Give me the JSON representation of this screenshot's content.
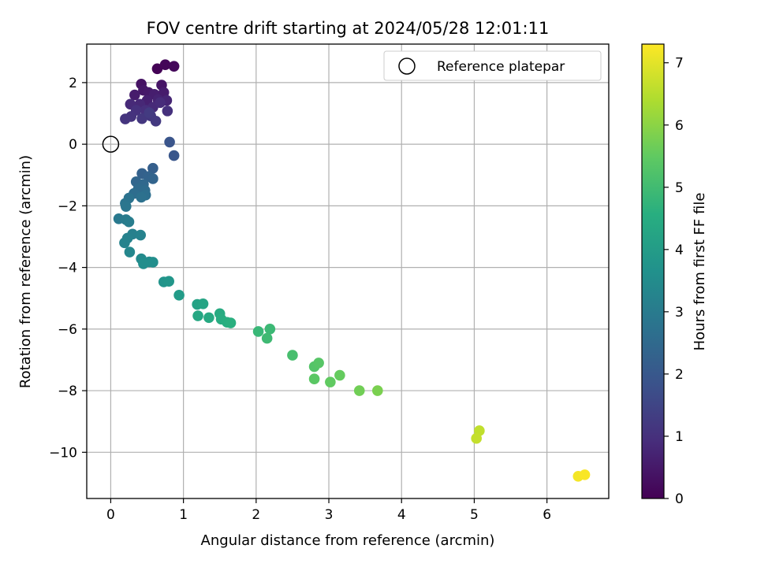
{
  "chart_data": {
    "type": "scatter",
    "title": "FOV centre drift starting at 2024/05/28 12:01:11",
    "xlabel": "Angular distance from reference (arcmin)",
    "ylabel": "Rotation from reference (arcmin)",
    "xlim": [
      -0.33,
      6.85
    ],
    "ylim": [
      -11.5,
      3.25
    ],
    "x_ticks": [
      0,
      1,
      2,
      3,
      4,
      5,
      6
    ],
    "y_ticks": [
      2,
      0,
      -2,
      -4,
      -6,
      -8,
      -10
    ],
    "y_tick_labels": [
      "2",
      "0",
      "−2",
      "−4",
      "−6",
      "−8",
      "−10"
    ],
    "grid": true,
    "legend": {
      "placement": "top-right",
      "entries": [
        "Reference platepar"
      ]
    },
    "reference_point": {
      "name": "Reference platepar",
      "x": 0,
      "y": 0,
      "marker": "open-circle"
    },
    "colorbar": {
      "label": "Hours from first FF file",
      "range": [
        0,
        7.3
      ],
      "ticks": [
        0,
        1,
        2,
        3,
        4,
        5,
        6,
        7
      ],
      "colormap": "viridis"
    },
    "series": [
      {
        "points": [
          {
            "x": 0.64,
            "y": 2.45,
            "c": 0.05
          },
          {
            "x": 0.75,
            "y": 2.58,
            "c": 0.1
          },
          {
            "x": 0.87,
            "y": 2.53,
            "c": 0.15
          },
          {
            "x": 0.42,
            "y": 1.95,
            "c": 0.35
          },
          {
            "x": 0.7,
            "y": 1.92,
            "c": 0.4
          },
          {
            "x": 0.45,
            "y": 1.75,
            "c": 0.45
          },
          {
            "x": 0.52,
            "y": 1.68,
            "c": 0.5
          },
          {
            "x": 0.33,
            "y": 1.6,
            "c": 0.55
          },
          {
            "x": 0.6,
            "y": 1.62,
            "c": 0.6
          },
          {
            "x": 0.73,
            "y": 1.68,
            "c": 0.55
          },
          {
            "x": 0.5,
            "y": 1.42,
            "c": 0.65
          },
          {
            "x": 0.65,
            "y": 1.45,
            "c": 0.7
          },
          {
            "x": 0.77,
            "y": 1.42,
            "c": 0.75
          },
          {
            "x": 0.4,
            "y": 1.3,
            "c": 0.8
          },
          {
            "x": 0.27,
            "y": 1.3,
            "c": 0.85
          },
          {
            "x": 0.58,
            "y": 1.2,
            "c": 0.85
          },
          {
            "x": 0.68,
            "y": 1.35,
            "c": 0.9
          },
          {
            "x": 0.48,
            "y": 1.1,
            "c": 0.95
          },
          {
            "x": 0.35,
            "y": 1.1,
            "c": 1.0
          },
          {
            "x": 0.78,
            "y": 1.08,
            "c": 1.0
          },
          {
            "x": 0.28,
            "y": 0.9,
            "c": 1.05
          },
          {
            "x": 0.2,
            "y": 0.82,
            "c": 1.1
          },
          {
            "x": 0.43,
            "y": 0.83,
            "c": 1.15
          },
          {
            "x": 0.55,
            "y": 0.92,
            "c": 1.15
          },
          {
            "x": 0.62,
            "y": 0.75,
            "c": 1.2
          },
          {
            "x": 0.53,
            "y": 1.02,
            "c": 1.25
          },
          {
            "x": 0.81,
            "y": 0.07,
            "c": 1.9
          },
          {
            "x": 0.87,
            "y": -0.37,
            "c": 1.95
          },
          {
            "x": 0.58,
            "y": -0.78,
            "c": 2.2
          },
          {
            "x": 0.43,
            "y": -0.95,
            "c": 2.25
          },
          {
            "x": 0.52,
            "y": -1.05,
            "c": 2.3
          },
          {
            "x": 0.58,
            "y": -1.12,
            "c": 2.35
          },
          {
            "x": 0.35,
            "y": -1.22,
            "c": 2.4
          },
          {
            "x": 0.45,
            "y": -1.3,
            "c": 2.45
          },
          {
            "x": 0.38,
            "y": -1.45,
            "c": 2.5
          },
          {
            "x": 0.47,
            "y": -1.5,
            "c": 2.55
          },
          {
            "x": 0.32,
            "y": -1.6,
            "c": 2.6
          },
          {
            "x": 0.48,
            "y": -1.65,
            "c": 2.65
          },
          {
            "x": 0.42,
            "y": -1.72,
            "c": 2.7
          },
          {
            "x": 0.25,
            "y": -1.75,
            "c": 2.75
          },
          {
            "x": 0.2,
            "y": -1.92,
            "c": 2.8
          },
          {
            "x": 0.21,
            "y": -2.02,
            "c": 2.85
          },
          {
            "x": 0.11,
            "y": -2.42,
            "c": 2.95
          },
          {
            "x": 0.21,
            "y": -2.45,
            "c": 3.0
          },
          {
            "x": 0.25,
            "y": -2.52,
            "c": 3.05
          },
          {
            "x": 0.3,
            "y": -2.92,
            "c": 3.15
          },
          {
            "x": 0.41,
            "y": -2.95,
            "c": 3.2
          },
          {
            "x": 0.23,
            "y": -3.05,
            "c": 3.2
          },
          {
            "x": 0.19,
            "y": -3.2,
            "c": 3.25
          },
          {
            "x": 0.26,
            "y": -3.5,
            "c": 3.35
          },
          {
            "x": 0.42,
            "y": -3.72,
            "c": 3.45
          },
          {
            "x": 0.53,
            "y": -3.82,
            "c": 3.5
          },
          {
            "x": 0.58,
            "y": -3.83,
            "c": 3.55
          },
          {
            "x": 0.45,
            "y": -3.88,
            "c": 3.55
          },
          {
            "x": 0.73,
            "y": -4.47,
            "c": 3.75
          },
          {
            "x": 0.8,
            "y": -4.45,
            "c": 3.8
          },
          {
            "x": 0.94,
            "y": -4.9,
            "c": 3.95
          },
          {
            "x": 1.19,
            "y": -5.2,
            "c": 4.2
          },
          {
            "x": 1.27,
            "y": -5.18,
            "c": 4.25
          },
          {
            "x": 1.2,
            "y": -5.57,
            "c": 4.35
          },
          {
            "x": 1.35,
            "y": -5.63,
            "c": 4.4
          },
          {
            "x": 1.5,
            "y": -5.5,
            "c": 4.45
          },
          {
            "x": 1.52,
            "y": -5.68,
            "c": 4.5
          },
          {
            "x": 1.6,
            "y": -5.78,
            "c": 4.55
          },
          {
            "x": 1.65,
            "y": -5.8,
            "c": 4.6
          },
          {
            "x": 2.03,
            "y": -6.08,
            "c": 4.85
          },
          {
            "x": 2.19,
            "y": -6.0,
            "c": 4.9
          },
          {
            "x": 2.15,
            "y": -6.3,
            "c": 4.95
          },
          {
            "x": 2.5,
            "y": -6.85,
            "c": 5.1
          },
          {
            "x": 2.8,
            "y": -7.22,
            "c": 5.3
          },
          {
            "x": 2.86,
            "y": -7.1,
            "c": 5.35
          },
          {
            "x": 2.8,
            "y": -7.62,
            "c": 5.4
          },
          {
            "x": 3.02,
            "y": -7.72,
            "c": 5.5
          },
          {
            "x": 3.15,
            "y": -7.5,
            "c": 5.55
          },
          {
            "x": 3.42,
            "y": -8.0,
            "c": 5.7
          },
          {
            "x": 3.67,
            "y": -8.0,
            "c": 5.8
          },
          {
            "x": 5.07,
            "y": -9.3,
            "c": 6.6
          },
          {
            "x": 5.03,
            "y": -9.55,
            "c": 6.65
          },
          {
            "x": 6.43,
            "y": -10.78,
            "c": 7.2
          },
          {
            "x": 6.52,
            "y": -10.73,
            "c": 7.25
          }
        ]
      }
    ]
  }
}
